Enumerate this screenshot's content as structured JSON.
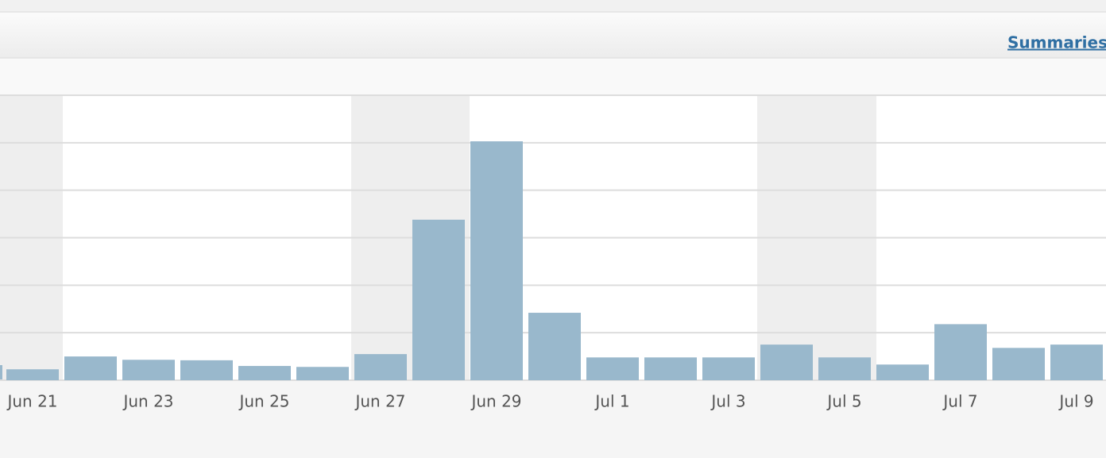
{
  "header": {
    "link": "Summaries"
  },
  "chart_data": {
    "type": "bar",
    "categories": [
      "Jun 21",
      null,
      "Jun 23",
      null,
      "Jun 25",
      null,
      "Jun 27",
      null,
      "Jun 29",
      null,
      "Jul 1",
      null,
      "Jul 3",
      null,
      "Jul 5",
      null,
      "Jul 7",
      null,
      "Jul 9"
    ],
    "values": [
      0.23,
      0.5,
      0.43,
      0.42,
      0.3,
      0.28,
      0.55,
      3.38,
      5.03,
      1.42,
      0.48,
      0.48,
      0.48,
      0.75,
      0.48,
      0.33,
      1.18,
      0.68,
      0.75
    ],
    "color": "#99b8cc",
    "ylim": [
      0,
      6
    ],
    "yticks": [
      0,
      1,
      2,
      3,
      4,
      5,
      6
    ],
    "grid": true
  }
}
